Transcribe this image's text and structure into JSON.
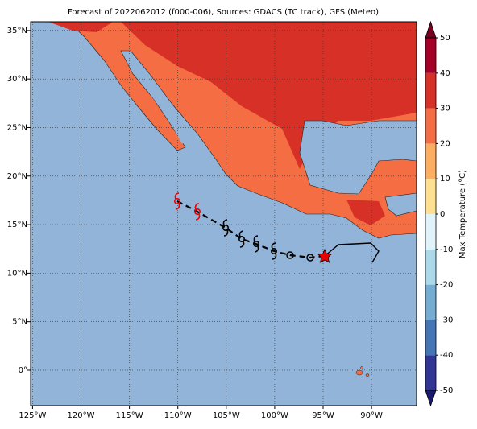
{
  "title": "Forecast of 2022062012 (f000-006), Sources: GDACS (TC track), GFS (Meteo)",
  "map": {
    "xlim": [
      -125.2,
      -85.35
    ],
    "ylim": [
      -3.65,
      35.9
    ],
    "xticks": [
      {
        "value": -125,
        "label": "125°W"
      },
      {
        "value": -120,
        "label": "120°W"
      },
      {
        "value": -115,
        "label": "115°W"
      },
      {
        "value": -110,
        "label": "110°W"
      },
      {
        "value": -105,
        "label": "105°W"
      },
      {
        "value": -100,
        "label": "100°W"
      },
      {
        "value": -95,
        "label": "95°W"
      },
      {
        "value": -90,
        "label": "90°W"
      }
    ],
    "yticks": [
      {
        "value": 0,
        "label": "0°"
      },
      {
        "value": 5,
        "label": "5°N"
      },
      {
        "value": 10,
        "label": "10°N"
      },
      {
        "value": 15,
        "label": "15°N"
      },
      {
        "value": 20,
        "label": "20°N"
      },
      {
        "value": 25,
        "label": "25°N"
      },
      {
        "value": 30,
        "label": "30°N"
      },
      {
        "value": 35,
        "label": "35°N"
      }
    ],
    "grid": true
  },
  "colorbar": {
    "label": "Max Temperature (°C)",
    "lim": [
      -50,
      50
    ],
    "ticks": [
      -50,
      -40,
      -30,
      -20,
      -10,
      0,
      10,
      20,
      30,
      40,
      50
    ],
    "colors": [
      "#313695",
      "#4575b4",
      "#74add1",
      "#abd9e9",
      "#e0f3f8",
      "#fee090",
      "#fdae61",
      "#f46d43",
      "#d73027",
      "#a50026"
    ],
    "under": "#1a1a6e",
    "over": "#7a0020"
  }
}
